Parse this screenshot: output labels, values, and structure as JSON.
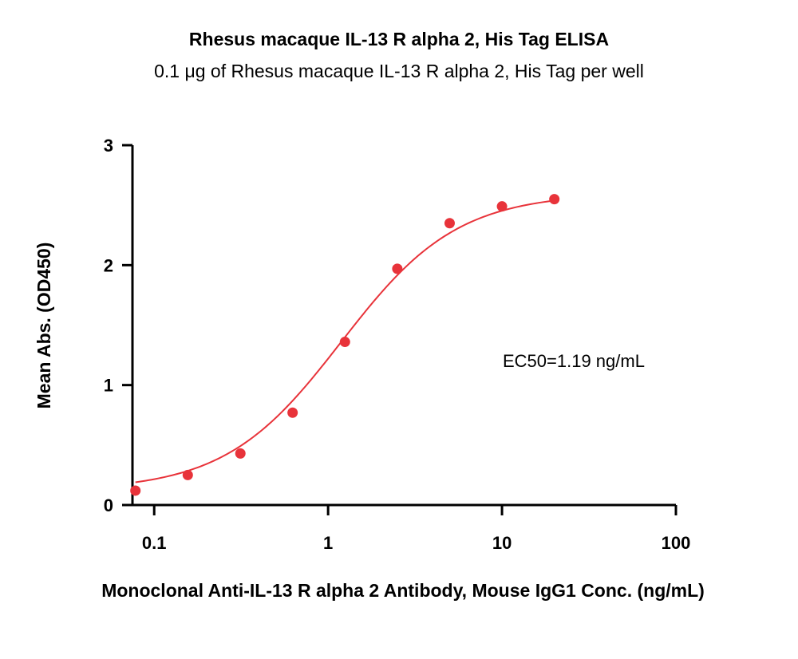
{
  "chart_data": {
    "type": "scatter",
    "title": "Rhesus macaque IL-13 R alpha 2, His Tag ELISA",
    "subtitle": "0.1 μg of Rhesus macaque IL-13 R alpha 2, His Tag per well",
    "xlabel": "Monoclonal Anti-IL-13 R alpha 2 Antibody, Mouse IgG1 Conc. (ng/mL)",
    "ylabel": "Mean Abs. (OD450)",
    "xscale": "log",
    "xlim": [
      0.075,
      100
    ],
    "ylim": [
      0,
      3
    ],
    "xticks": [
      0.1,
      1,
      10,
      100
    ],
    "xtick_labels": [
      "0.1",
      "1",
      "10",
      "100"
    ],
    "yticks": [
      0,
      1,
      2,
      3
    ],
    "ytick_labels": [
      "0",
      "1",
      "2",
      "3"
    ],
    "grid": false,
    "series": [
      {
        "color": "#e8333a",
        "x": [
          0.078,
          0.156,
          0.313,
          0.625,
          1.25,
          2.5,
          5,
          10,
          20
        ],
        "y": [
          0.12,
          0.25,
          0.43,
          0.77,
          1.36,
          1.97,
          2.35,
          2.49,
          2.55
        ]
      }
    ],
    "fit": {
      "model": "4PL",
      "bottom": 0.12,
      "top": 2.6,
      "ec50": 1.19,
      "hill": 1.3
    },
    "annotation": "EC50=1.19 ng/mL"
  }
}
